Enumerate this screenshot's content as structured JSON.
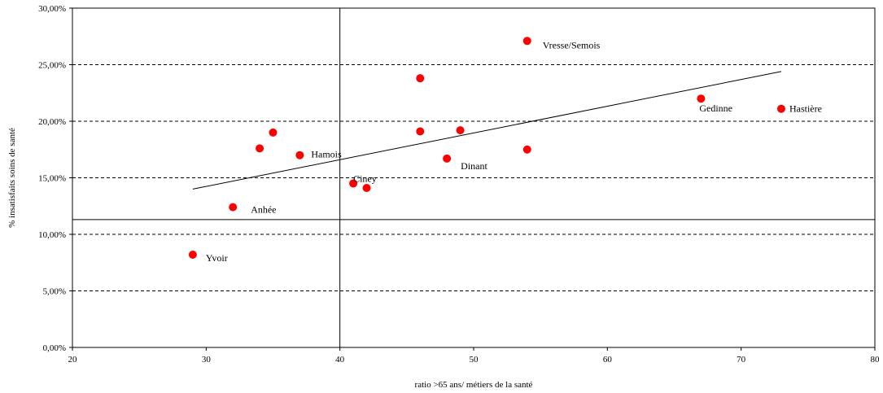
{
  "chart_data": {
    "type": "scatter",
    "xlabel": "ratio >65 ans/ métiers de la santé",
    "ylabel": "% insatisfaits soins de santé",
    "xlim": [
      20,
      80
    ],
    "ylim": [
      0,
      0.3
    ],
    "x_ticks": [
      20,
      30,
      40,
      50,
      60,
      70,
      80
    ],
    "x_tick_labels": [
      "20",
      "30",
      "40",
      "50",
      "60",
      "70",
      "80"
    ],
    "y_ticks": [
      0,
      0.05,
      0.1,
      0.15,
      0.2,
      0.25,
      0.3
    ],
    "y_tick_labels": [
      "0,00%",
      "5,00%",
      "10,00%",
      "15,00%",
      "20,00%",
      "25,00%",
      "30,00%"
    ],
    "grid": "horizontal dashed",
    "marker_color": "#ff0000",
    "points": [
      {
        "x": 29,
        "y": 0.082,
        "label": "Yvoir"
      },
      {
        "x": 32,
        "y": 0.124,
        "label": "Anhée"
      },
      {
        "x": 34,
        "y": 0.176,
        "label": ""
      },
      {
        "x": 35,
        "y": 0.19,
        "label": ""
      },
      {
        "x": 37,
        "y": 0.17,
        "label": "Hamois"
      },
      {
        "x": 41,
        "y": 0.145,
        "label": "Ciney"
      },
      {
        "x": 42,
        "y": 0.141,
        "label": ""
      },
      {
        "x": 46,
        "y": 0.238,
        "label": ""
      },
      {
        "x": 46,
        "y": 0.191,
        "label": ""
      },
      {
        "x": 48,
        "y": 0.167,
        "label": "Dinant"
      },
      {
        "x": 49,
        "y": 0.192,
        "label": ""
      },
      {
        "x": 54,
        "y": 0.271,
        "label": "Vresse/Semois"
      },
      {
        "x": 54,
        "y": 0.175,
        "label": ""
      },
      {
        "x": 67,
        "y": 0.22,
        "label": "Gedinne"
      },
      {
        "x": 73,
        "y": 0.211,
        "label": "Hastière"
      }
    ],
    "trendline": {
      "x": [
        29,
        73
      ],
      "y": [
        0.14,
        0.244
      ]
    },
    "reference_lines": {
      "vertical_x": 40,
      "horizontal_y": 0.113
    }
  }
}
